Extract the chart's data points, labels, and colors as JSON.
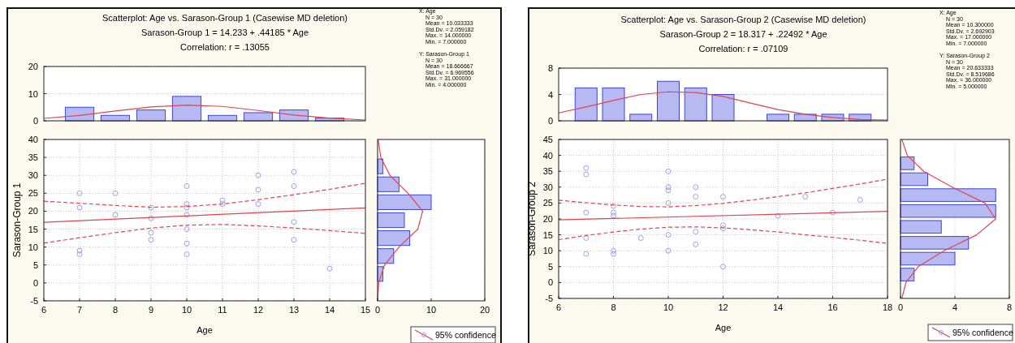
{
  "chart_data": [
    {
      "type": "bar",
      "title": "Scatterplot: Age vs. Sarason-Group 1 (Casewise MD deletion)",
      "subtitle": "Sarason-Group 1 = 14.233 + .44185 * Age",
      "annotations": [
        "Correlation: r = .13055"
      ],
      "xlim": [
        6,
        15
      ],
      "ylim": [
        0,
        20
      ],
      "yticks": [
        0,
        10,
        20
      ],
      "grid": "y",
      "tick_labels": "y",
      "series": [
        {
          "x": [
            7,
            8,
            9,
            10,
            11,
            12,
            13,
            14
          ],
          "values": [
            5,
            2,
            4,
            9,
            2,
            3,
            4,
            1
          ],
          "color": "#b7baf2"
        },
        {
          "type": "line",
          "x": [
            6,
            7,
            8,
            9,
            10,
            11,
            12,
            13,
            14,
            15
          ],
          "values": [
            0.9,
            2,
            3.6,
            5.1,
            5.8,
            5.3,
            3.8,
            2.1,
            1,
            0.3
          ],
          "color": "#e2434f"
        }
      ]
    },
    {
      "type": "scatter",
      "xlabel": "Age",
      "ylabel": "Sarason-Group 1",
      "xlim": [
        6,
        15
      ],
      "xticks": [
        6,
        7,
        8,
        9,
        10,
        11,
        12,
        13,
        14,
        15
      ],
      "ylim": [
        -5,
        40
      ],
      "yticks": [
        -5,
        0,
        5,
        10,
        15,
        20,
        25,
        30,
        35,
        40
      ],
      "grid": true,
      "legend": "bottom right",
      "annotations": [
        "X: Age",
        "N = 30",
        "Mean = 10.033333",
        "Std.Dv. = 2.059182",
        "Max. = 14.000000",
        "Min. = 7.000000",
        "Y: Sarason-Group 1",
        "N = 30",
        "Mean = 18.666667",
        "Std.Dv. = 6.969556",
        "Max. = 31.000000",
        "Min. = 4.000000"
      ],
      "series": [
        {
          "x": [
            7,
            7,
            7,
            7,
            8,
            8,
            9,
            9,
            9,
            9,
            10,
            10,
            10,
            10,
            10,
            10,
            10,
            11,
            11,
            12,
            12,
            12,
            13,
            13,
            13,
            13,
            14
          ],
          "values": [
            25,
            21,
            9,
            8,
            25,
            19,
            21,
            18,
            14,
            12,
            27,
            22,
            21,
            19,
            15,
            11,
            8,
            23,
            22,
            30,
            26,
            22,
            31,
            27,
            17,
            12,
            4
          ],
          "color": "#9fa2ea",
          "marker": "circle"
        },
        {
          "type": "line",
          "x": [
            6,
            15
          ],
          "values": [
            16.9,
            20.9
          ],
          "color": "#e2434f",
          "line_style": "solid"
        },
        {
          "type": "line",
          "name": "95% confidence",
          "x": [
            6,
            7,
            8,
            9,
            10,
            11,
            12,
            13,
            14,
            15
          ],
          "values": [
            22.8,
            22.2,
            21.6,
            21.1,
            21.3,
            22,
            23.2,
            24.6,
            26.1,
            27.8
          ],
          "color": "#e2434f",
          "line_style": "dashed"
        },
        {
          "type": "line",
          "x": [
            6,
            7,
            8,
            9,
            10,
            11,
            12,
            13,
            14,
            15
          ],
          "values": [
            11.1,
            12.6,
            14,
            15.3,
            16.1,
            16.3,
            15.9,
            15.3,
            14.6,
            13.8
          ],
          "color": "#e2434f",
          "line_style": "dashed"
        }
      ]
    },
    {
      "type": "histogram",
      "orientation": "horizontal",
      "bins": [
        0,
        5,
        10,
        15,
        20,
        25,
        30,
        35
      ],
      "xlim": [
        0,
        20
      ],
      "xticks": [
        0,
        10,
        20
      ],
      "ylim": [
        -5,
        40
      ],
      "grid": "x",
      "tick_labels": "x",
      "series": [
        {
          "values": [
            1,
            3,
            6,
            5,
            10,
            4,
            1
          ],
          "color": "#b7baf2"
        },
        {
          "type": "line",
          "x": [
            -5,
            0,
            5,
            10,
            15,
            20,
            25,
            30,
            35,
            40
          ],
          "values": [
            0,
            0.2,
            1.3,
            4,
            7.5,
            8.4,
            5.7,
            2.3,
            0.6,
            0.1
          ],
          "color": "#e2434f"
        }
      ]
    },
    {
      "type": "bar",
      "title": "Scatterplot: Age vs. Sarason-Group 2 (Casewise MD deletion)",
      "subtitle": "Sarason-Group 2 = 18.317 + .22492 * Age",
      "annotations": [
        "Correlation: r = .07109"
      ],
      "xlim": [
        6,
        18
      ],
      "ylim": [
        0,
        8
      ],
      "yticks": [
        0,
        4,
        8
      ],
      "grid": "y",
      "tick_labels": "y",
      "series": [
        {
          "x": [
            7,
            8,
            9,
            10,
            11,
            12,
            14,
            15,
            16,
            17
          ],
          "values": [
            5,
            5,
            1,
            6,
            5,
            4,
            1,
            1,
            1,
            1
          ],
          "color": "#b7baf2"
        },
        {
          "type": "line",
          "x": [
            6,
            7,
            8,
            9,
            10,
            11,
            12,
            13,
            14,
            15,
            16,
            17,
            18
          ],
          "values": [
            1.2,
            2.1,
            3.1,
            4,
            4.4,
            4.3,
            3.7,
            2.7,
            1.7,
            1,
            0.5,
            0.2,
            0.1
          ],
          "color": "#e2434f"
        }
      ]
    },
    {
      "type": "scatter",
      "xlabel": "Age",
      "ylabel": "Sarason-Group 2",
      "xlim": [
        6,
        18
      ],
      "xticks": [
        6,
        8,
        10,
        12,
        14,
        16,
        18
      ],
      "ylim": [
        -5,
        45
      ],
      "yticks": [
        -5,
        0,
        5,
        10,
        15,
        20,
        25,
        30,
        35,
        40,
        45
      ],
      "grid": true,
      "legend": "bottom right",
      "annotations": [
        "X: Age",
        "N = 30",
        "Mean = 10.300000",
        "Std.Dv. = 2.692903",
        "Max. = 17.000000",
        "Min. = 7.000000",
        "Y: Sarason-Group 2",
        "N = 30",
        "Mean = 20.633333",
        "Std.Dv. = 8.519686",
        "Max. = 36.000000",
        "Min. = 5.000000"
      ],
      "series": [
        {
          "x": [
            7,
            7,
            7,
            7,
            7,
            8,
            8,
            8,
            8,
            8,
            9,
            10,
            10,
            10,
            10,
            10,
            10,
            11,
            11,
            11,
            11,
            12,
            12,
            12,
            12,
            14,
            15,
            16,
            17
          ],
          "values": [
            36,
            34,
            22,
            14,
            9,
            24,
            22,
            21,
            10,
            9,
            14,
            35,
            30,
            29,
            25,
            15,
            10,
            30,
            27,
            16,
            12,
            27,
            18,
            17,
            5,
            21,
            27,
            22,
            26
          ],
          "color": "#9fa2ea",
          "marker": "circle"
        },
        {
          "type": "line",
          "x": [
            6,
            18
          ],
          "values": [
            19.7,
            22.4
          ],
          "color": "#e2434f",
          "line_style": "solid"
        },
        {
          "type": "line",
          "name": "95% confidence",
          "x": [
            6,
            7,
            8,
            9,
            10,
            11,
            12,
            13,
            14,
            15,
            16,
            17,
            18
          ],
          "values": [
            25.9,
            25.1,
            24.4,
            23.9,
            23.8,
            24.2,
            24.9,
            25.9,
            27,
            28.2,
            29.6,
            31,
            32.5
          ],
          "color": "#e2434f",
          "line_style": "dashed"
        },
        {
          "type": "line",
          "x": [
            6,
            7,
            8,
            9,
            10,
            11,
            12,
            13,
            14,
            15,
            16,
            17,
            18
          ],
          "values": [
            13.5,
            14.8,
            15.9,
            16.8,
            17.4,
            17.5,
            17.2,
            16.6,
            15.9,
            15,
            14.2,
            13.3,
            12.3
          ],
          "color": "#e2434f",
          "line_style": "dashed"
        }
      ]
    },
    {
      "type": "histogram",
      "orientation": "horizontal",
      "bins": [
        0,
        5,
        10,
        15,
        20,
        25,
        30,
        35,
        40
      ],
      "xlim": [
        0,
        8
      ],
      "xticks": [
        0,
        4,
        8
      ],
      "ylim": [
        -5,
        45
      ],
      "grid": "x",
      "tick_labels": "x",
      "series": [
        {
          "values": [
            1,
            4,
            5,
            3,
            7,
            7,
            2,
            1
          ],
          "color": "#b7baf2"
        },
        {
          "type": "line",
          "x": [
            -5,
            0,
            5,
            10,
            15,
            20,
            25,
            30,
            35,
            40,
            45
          ],
          "values": [
            0.1,
            0.4,
            1.3,
            3.2,
            5.6,
            7,
            6.2,
            3.8,
            1.7,
            0.5,
            0.1
          ],
          "color": "#e2434f"
        }
      ]
    }
  ]
}
